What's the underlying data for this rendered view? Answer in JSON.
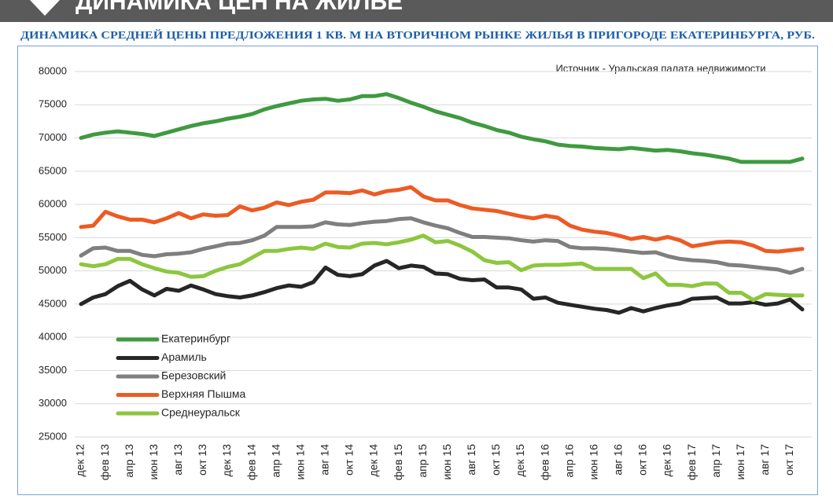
{
  "header": {
    "title": "ДИНАМИКА ЦЕН НА ЖИЛЬЕ"
  },
  "chart_data": {
    "type": "line",
    "title": "ДИНАМИКА СРЕДНЕЙ ЦЕНЫ ПРЕДЛОЖЕНИЯ 1 КВ. М НА ВТОРИЧНОМ РЫНКЕ ЖИЛЬЯ В ПРИГОРОДЕ ЕКАТЕРИНБУРГА, РУБ.",
    "annotation": "Источник - Уральская палата недвижимости",
    "categories": [
      "дек 12",
      null,
      "фев 13",
      null,
      "апр 13",
      null,
      "июн 13",
      null,
      "авг 13",
      null,
      "окт 13",
      null,
      "дек 13",
      null,
      "фев 14",
      null,
      "апр 14",
      null,
      "июн 14",
      null,
      "авг 14",
      null,
      "окт 14",
      null,
      "дек 14",
      null,
      "фев 15",
      null,
      "апр 15",
      null,
      "июн 15",
      null,
      "авг 15",
      null,
      "окт 15",
      null,
      "дек 15",
      null,
      "фев 16",
      null,
      "апр 16",
      null,
      "июн 16",
      null,
      "авг 16",
      null,
      "окт 16",
      null,
      "дек 16",
      null,
      "фев 17",
      null,
      "апр 17",
      null,
      "июн 17",
      null,
      "авг 17",
      null,
      "окт 17",
      null
    ],
    "series": [
      {
        "name": "Екатеринбург",
        "color": "#3f9a3f",
        "values": [
          70000,
          70500,
          70800,
          71000,
          70800,
          70600,
          70300,
          70800,
          71300,
          71800,
          72200,
          72500,
          72900,
          73200,
          73600,
          74300,
          74800,
          75200,
          75600,
          75800,
          75900,
          75600,
          75800,
          76300,
          76300,
          76600,
          76000,
          75300,
          74700,
          74000,
          73500,
          73000,
          72300,
          71800,
          71200,
          70800,
          70200,
          69800,
          69500,
          69000,
          68800,
          68700,
          68500,
          68400,
          68300,
          68500,
          68300,
          68100,
          68200,
          68000,
          67700,
          67500,
          67200,
          66900,
          66400,
          66400,
          66400,
          66400,
          66400,
          66900
        ]
      },
      {
        "name": "Арамиль",
        "color": "#262626",
        "values": [
          45000,
          46000,
          46500,
          47700,
          48500,
          47200,
          46300,
          47300,
          47000,
          47800,
          47200,
          46500,
          46200,
          46000,
          46300,
          46800,
          47400,
          47800,
          47600,
          48300,
          50500,
          49400,
          49200,
          49500,
          50800,
          51500,
          50400,
          50800,
          50600,
          49600,
          49500,
          48800,
          48600,
          48700,
          47500,
          47500,
          47200,
          45800,
          46000,
          45200,
          44900,
          44600,
          44300,
          44100,
          43700,
          44400,
          43900,
          44400,
          44800,
          45100,
          45800,
          45900,
          46000,
          45100,
          45100,
          45300,
          44900,
          45100,
          45700,
          44200
        ]
      },
      {
        "name": "Березовский",
        "color": "#7f7f7f",
        "values": [
          52300,
          53400,
          53500,
          53000,
          53000,
          52400,
          52200,
          52500,
          52600,
          52800,
          53300,
          53700,
          54100,
          54200,
          54600,
          55300,
          56600,
          56600,
          56600,
          56700,
          57300,
          57000,
          56900,
          57200,
          57400,
          57500,
          57800,
          57900,
          57300,
          56800,
          56400,
          55700,
          55100,
          55100,
          55000,
          54900,
          54600,
          54400,
          54600,
          54500,
          53600,
          53400,
          53400,
          53300,
          53100,
          52900,
          52700,
          52800,
          52200,
          51800,
          51600,
          51500,
          51300,
          50900,
          50800,
          50600,
          50400,
          50200,
          49700,
          50300
        ]
      },
      {
        "name": "Верхняя Пышма",
        "color": "#ec5b24",
        "values": [
          56600,
          56800,
          58900,
          58200,
          57700,
          57700,
          57300,
          57900,
          58700,
          57900,
          58500,
          58300,
          58400,
          59700,
          59100,
          59500,
          60300,
          59900,
          60400,
          60700,
          61800,
          61800,
          61700,
          62100,
          61500,
          62000,
          62200,
          62600,
          61200,
          60600,
          60600,
          59900,
          59400,
          59200,
          59000,
          58600,
          58200,
          57900,
          58300,
          58000,
          56800,
          56200,
          55900,
          55700,
          55300,
          54800,
          55100,
          54700,
          55100,
          54600,
          53700,
          54000,
          54300,
          54400,
          54300,
          53800,
          53000,
          52900,
          53100,
          53300
        ]
      },
      {
        "name": "Среднеуральск",
        "color": "#8dc63f",
        "values": [
          51000,
          50700,
          51000,
          51800,
          51800,
          51000,
          50400,
          49900,
          49700,
          49100,
          49200,
          50000,
          50600,
          51000,
          52000,
          53000,
          53000,
          53300,
          53500,
          53300,
          54100,
          53600,
          53500,
          54100,
          54200,
          54000,
          54300,
          54700,
          55300,
          54300,
          54500,
          53800,
          52900,
          51600,
          51200,
          51300,
          50100,
          50800,
          50900,
          50900,
          51000,
          51100,
          50300,
          50300,
          50300,
          50300,
          48900,
          49600,
          47900,
          47900,
          47700,
          48100,
          48100,
          46700,
          46700,
          45600,
          46500,
          46400,
          46300,
          46300
        ]
      }
    ],
    "ylim": [
      25000,
      80000
    ],
    "yticks": [
      25000,
      30000,
      35000,
      40000,
      45000,
      50000,
      55000,
      60000,
      65000,
      70000,
      75000,
      80000
    ],
    "grid": true
  }
}
